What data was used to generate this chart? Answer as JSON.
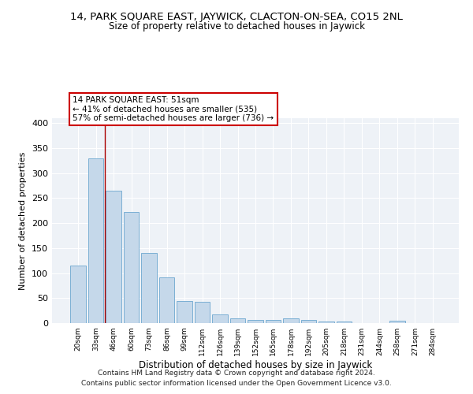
{
  "title1": "14, PARK SQUARE EAST, JAYWICK, CLACTON-ON-SEA, CO15 2NL",
  "title2": "Size of property relative to detached houses in Jaywick",
  "xlabel": "Distribution of detached houses by size in Jaywick",
  "ylabel": "Number of detached properties",
  "categories": [
    "20sqm",
    "33sqm",
    "46sqm",
    "60sqm",
    "73sqm",
    "86sqm",
    "99sqm",
    "112sqm",
    "126sqm",
    "139sqm",
    "152sqm",
    "165sqm",
    "178sqm",
    "192sqm",
    "205sqm",
    "218sqm",
    "231sqm",
    "244sqm",
    "258sqm",
    "271sqm",
    "284sqm"
  ],
  "values": [
    115,
    330,
    265,
    222,
    141,
    91,
    44,
    42,
    18,
    9,
    6,
    6,
    9,
    6,
    3,
    3,
    0,
    0,
    4,
    0,
    0
  ],
  "bar_color": "#c5d8ea",
  "bar_edge_color": "#7bafd4",
  "vline_x": 1.5,
  "vline_color": "#aa0000",
  "annotation_text": "14 PARK SQUARE EAST: 51sqm\n← 41% of detached houses are smaller (535)\n57% of semi-detached houses are larger (736) →",
  "annotation_box_color": "white",
  "annotation_box_edge_color": "#cc0000",
  "ylim": [
    0,
    410
  ],
  "yticks": [
    0,
    50,
    100,
    150,
    200,
    250,
    300,
    350,
    400
  ],
  "footnote1": "Contains HM Land Registry data © Crown copyright and database right 2024.",
  "footnote2": "Contains public sector information licensed under the Open Government Licence v3.0.",
  "bg_color": "#eef2f7"
}
